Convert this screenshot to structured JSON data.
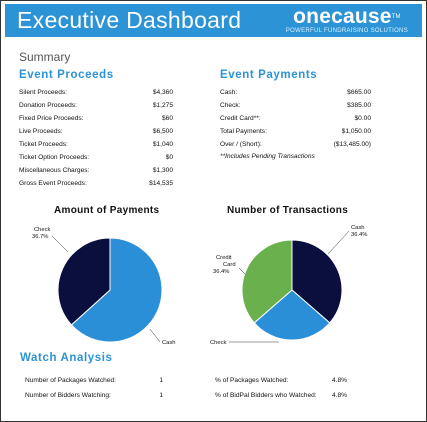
{
  "header": {
    "title": "Executive Dashboard",
    "logo_brand": "onecause",
    "logo_mark": "TM",
    "logo_tagline": "POWERFUL FUNDRAISING SOLUTIONS"
  },
  "summary_label": "Summary",
  "event_proceeds": {
    "title": "Event Proceeds",
    "rows": [
      {
        "label": "Silent Proceeds:",
        "value": "$4,360"
      },
      {
        "label": "Donation Proceeds:",
        "value": "$1,275"
      },
      {
        "label": "Fixed Price Proceeds:",
        "value": "$60"
      },
      {
        "label": "Live Proceeds:",
        "value": "$6,500"
      },
      {
        "label": "Ticket Proceeds:",
        "value": "$1,040"
      },
      {
        "label": "Ticket Option Proceeds:",
        "value": "$0"
      },
      {
        "label": "Miscellaneous Charges:",
        "value": "$1,300"
      },
      {
        "label": "Gross Event Proceeds:",
        "value": "$14,535"
      }
    ]
  },
  "event_payments": {
    "title": "Event Payments",
    "rows": [
      {
        "label": "Cash:",
        "value": "$665.00"
      },
      {
        "label": "Check:",
        "value": "$385.00"
      },
      {
        "label": "Credit Card**:",
        "value": "$0.00"
      },
      {
        "label": "Total Payments:",
        "value": "$1,050.00"
      },
      {
        "label": "Over / (Short):",
        "value": "($13,485.00)"
      }
    ],
    "note": "**Includes Pending Transactions"
  },
  "chart_data": [
    {
      "type": "pie",
      "title": "Amount of Payments",
      "slices": [
        {
          "label": "Cash",
          "value": 63.3,
          "value_label": "",
          "color": "#2b8fd8"
        },
        {
          "label": "Check",
          "value": 36.7,
          "value_label": "36.7%",
          "color": "#0b0f3d"
        }
      ]
    },
    {
      "type": "pie",
      "title": "Number of Transactions",
      "slices": [
        {
          "label": "Cash",
          "value": 36.4,
          "value_label": "36.4%",
          "color": "#0b0f3d"
        },
        {
          "label": "Check",
          "value": 27.2,
          "value_label": "",
          "color": "#2b8fd8"
        },
        {
          "label": "Credit Card",
          "value": 36.4,
          "value_label": "36.4%",
          "color": "#6ab04c"
        }
      ]
    }
  ],
  "watch_analysis": {
    "title": "Watch Analysis",
    "left_rows": [
      {
        "label": "Number of Packages Watched:",
        "value": "1"
      },
      {
        "label": "Number of Bidders Watching:",
        "value": "1"
      }
    ],
    "right_rows": [
      {
        "label": "% of Packages Watched:",
        "value": "4.8%"
      },
      {
        "label": "% of BidPal Bidders who Watched:",
        "value": "4.8%"
      }
    ]
  }
}
